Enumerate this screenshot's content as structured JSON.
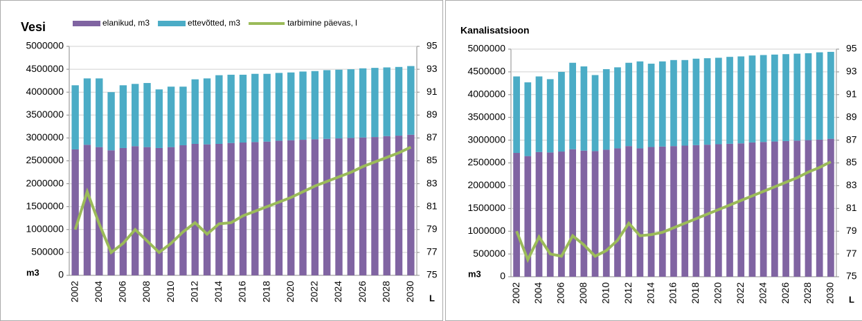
{
  "chart_data": [
    {
      "type": "bar",
      "title": "Vesi",
      "stacked": true,
      "categories": [
        "2002",
        null,
        "2004",
        null,
        "2006",
        null,
        "2008",
        null,
        "2010",
        null,
        "2012",
        null,
        "2014",
        null,
        "2016",
        null,
        "2018",
        null,
        "2020",
        null,
        "2022",
        null,
        "2024",
        null,
        "2026",
        null,
        "2028",
        null,
        "2030"
      ],
      "series": [
        {
          "name": "elanikud, m3",
          "color": "#8064a2",
          "values": [
            2750000,
            2850000,
            2800000,
            2730000,
            2780000,
            2820000,
            2800000,
            2780000,
            2800000,
            2840000,
            2870000,
            2860000,
            2870000,
            2890000,
            2900000,
            2910000,
            2920000,
            2940000,
            2950000,
            2960000,
            2970000,
            2980000,
            2990000,
            3000000,
            3010000,
            3020000,
            3040000,
            3050000,
            3070000
          ]
        },
        {
          "name": "ettevõtted, m3",
          "color": "#4bacc6",
          "values": [
            1400000,
            1450000,
            1500000,
            1270000,
            1370000,
            1360000,
            1400000,
            1280000,
            1320000,
            1280000,
            1410000,
            1440000,
            1500000,
            1490000,
            1480000,
            1490000,
            1480000,
            1480000,
            1480000,
            1490000,
            1490000,
            1500000,
            1500000,
            1500000,
            1510000,
            1510000,
            1500000,
            1500000,
            1500000
          ]
        },
        {
          "name": "tarbimine päevas, l",
          "color": "#9bbb59",
          "type": "line",
          "axis": "y2",
          "values": [
            79,
            82.3,
            79.5,
            77,
            77.8,
            79,
            78,
            77,
            77.8,
            78.8,
            79.6,
            78.6,
            79.5,
            79.6,
            80.2,
            80.6,
            81,
            81.4,
            81.8,
            82.3,
            82.8,
            83.2,
            83.6,
            84,
            84.5,
            84.9,
            85.3,
            85.7,
            86.2
          ]
        }
      ],
      "ylabel": "m3",
      "y2label": "L",
      "ylim": [
        0,
        5000000
      ],
      "yticks": [
        0,
        500000,
        1000000,
        1500000,
        2000000,
        2500000,
        3000000,
        3500000,
        4000000,
        4500000,
        5000000
      ],
      "y2lim": [
        75,
        95
      ],
      "y2ticks": [
        75,
        77,
        79,
        81,
        83,
        85,
        87,
        89,
        91,
        93,
        95
      ]
    },
    {
      "type": "bar",
      "title": "Kanalisatsioon",
      "stacked": true,
      "categories": [
        "2002",
        null,
        "2004",
        null,
        "2006",
        null,
        "2008",
        null,
        "2010",
        null,
        "2012",
        null,
        "2014",
        null,
        "2016",
        null,
        "2018",
        null,
        "2020",
        null,
        "2022",
        null,
        "2024",
        null,
        "2026",
        null,
        "2028",
        null,
        "2030"
      ],
      "series": [
        {
          "color": "#8064a2",
          "values": [
            2720000,
            2650000,
            2740000,
            2730000,
            2750000,
            2800000,
            2770000,
            2760000,
            2790000,
            2820000,
            2870000,
            2820000,
            2850000,
            2860000,
            2870000,
            2880000,
            2890000,
            2900000,
            2910000,
            2920000,
            2930000,
            2950000,
            2960000,
            2970000,
            2980000,
            2990000,
            3000000,
            3010000,
            3030000
          ]
        },
        {
          "color": "#4bacc6",
          "values": [
            1680000,
            1620000,
            1660000,
            1610000,
            1750000,
            1900000,
            1850000,
            1670000,
            1770000,
            1780000,
            1830000,
            1910000,
            1830000,
            1870000,
            1890000,
            1880000,
            1900000,
            1900000,
            1900000,
            1910000,
            1910000,
            1910000,
            1910000,
            1910000,
            1910000,
            1910000,
            1910000,
            1920000,
            1910000
          ]
        },
        {
          "color": "#9bbb59",
          "type": "line",
          "axis": "y2",
          "values": [
            79,
            76.5,
            78.5,
            77,
            76.8,
            78.6,
            77.8,
            76.8,
            77.3,
            78.2,
            79.7,
            78.6,
            78.7,
            78.9,
            79.3,
            79.7,
            80.1,
            80.5,
            80.9,
            81.3,
            81.7,
            82.1,
            82.5,
            82.9,
            83.3,
            83.7,
            84.2,
            84.6,
            85.1
          ]
        }
      ],
      "ylabel": "m3",
      "y2label": "L",
      "ylim": [
        0,
        5000000
      ],
      "yticks": [
        0,
        500000,
        1000000,
        1500000,
        2000000,
        2500000,
        3000000,
        3500000,
        4000000,
        4500000,
        5000000
      ],
      "y2lim": [
        75,
        95
      ],
      "y2ticks": [
        75,
        77,
        79,
        81,
        83,
        85,
        87,
        89,
        91,
        93,
        95
      ]
    }
  ]
}
